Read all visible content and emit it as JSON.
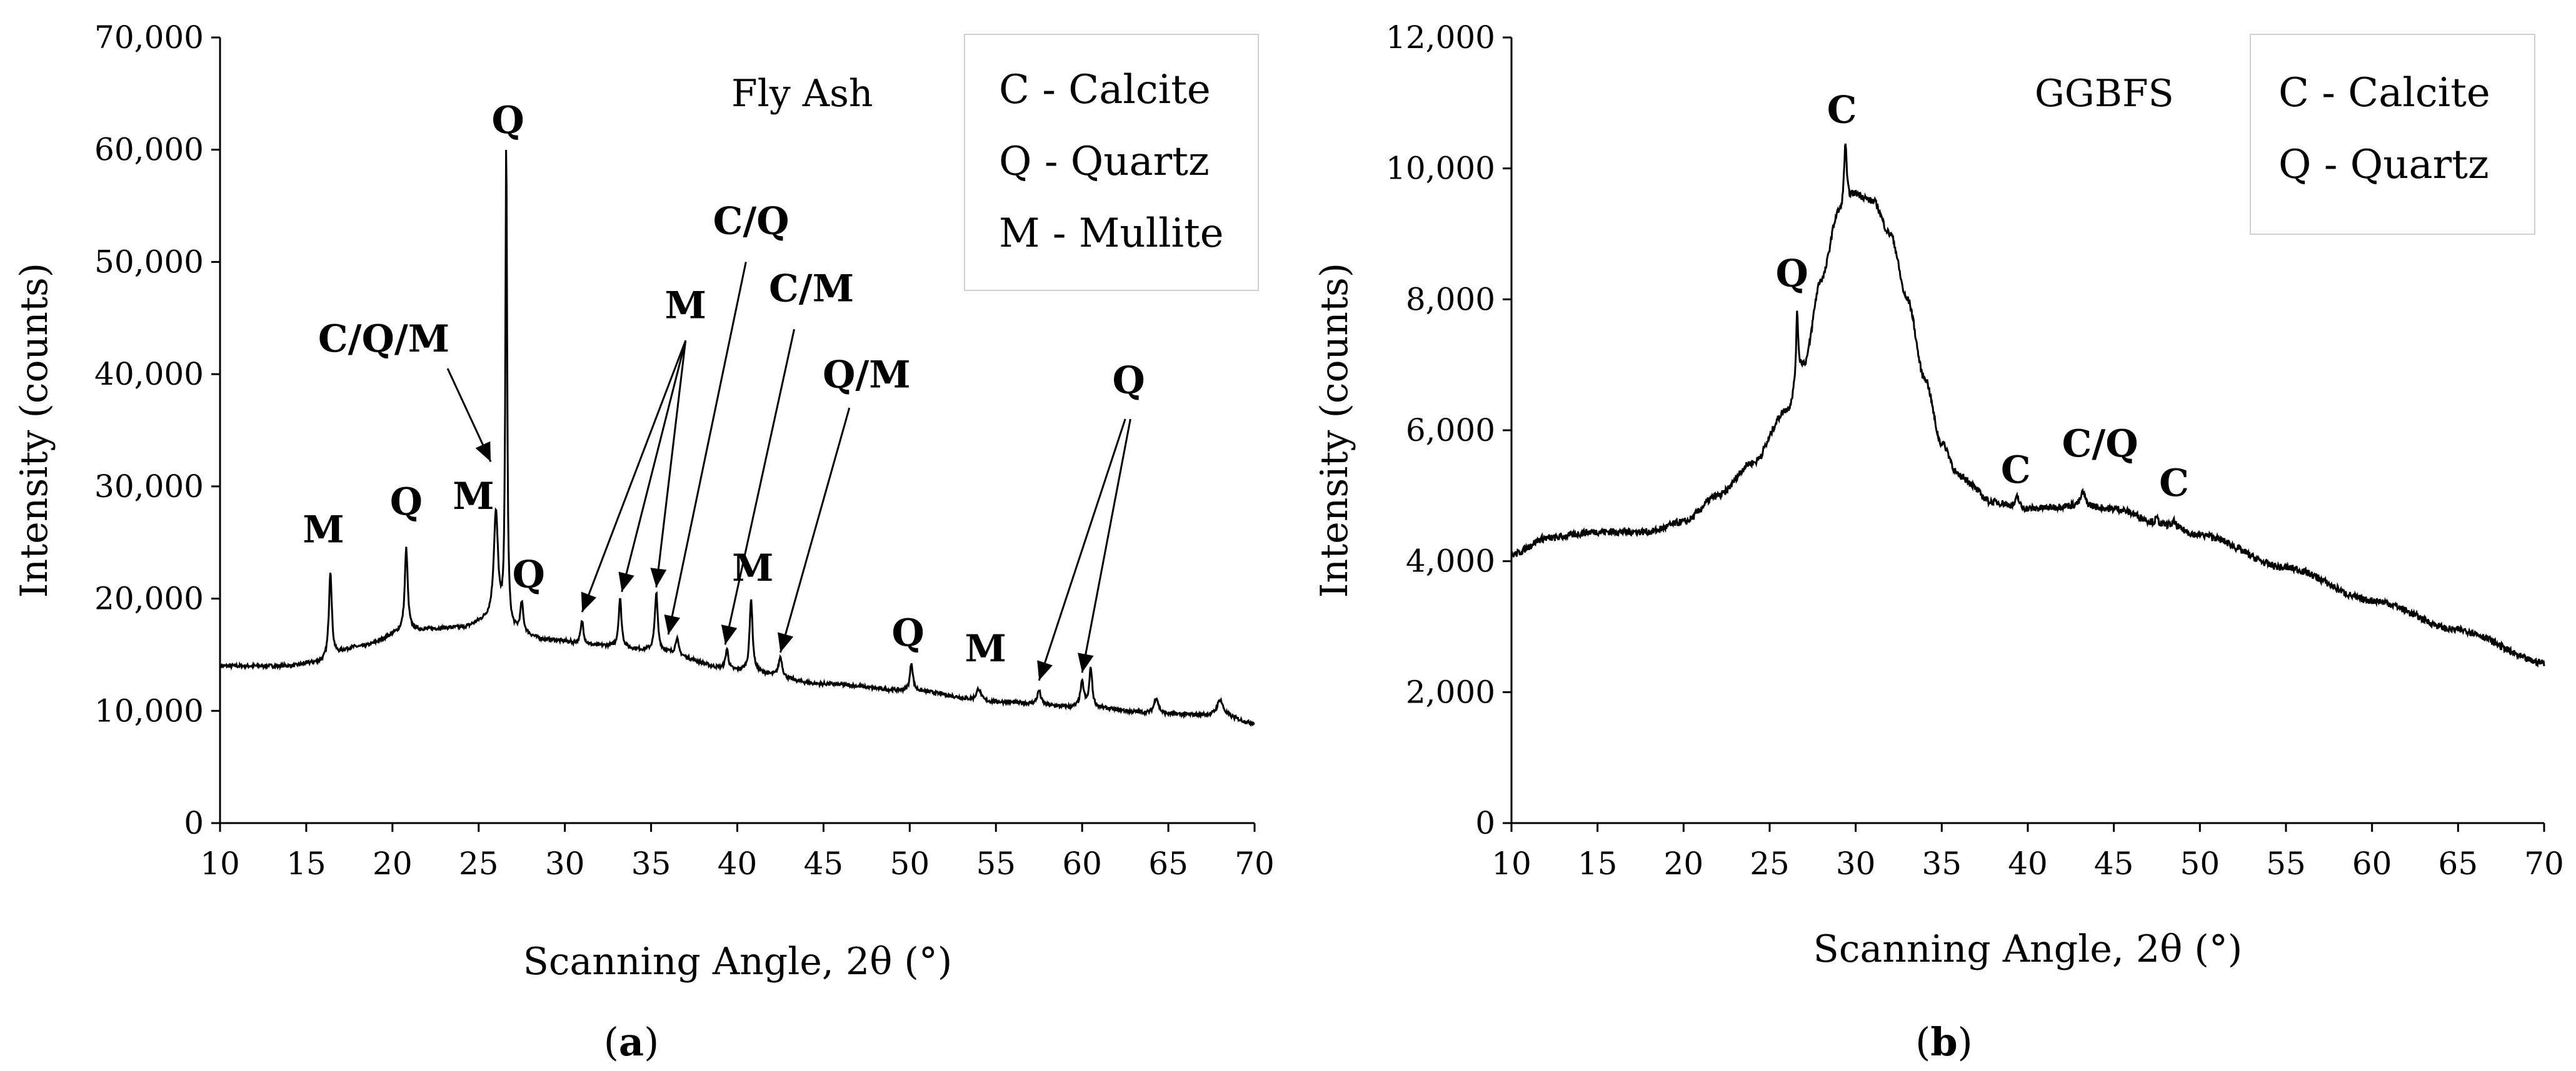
{
  "chart_data": [
    {
      "type": "line",
      "panel_label": "a",
      "sample_label": "Fly Ash",
      "xlabel": "Scanning Angle, 2θ (°)",
      "ylabel": "Intensity (counts)",
      "xlim": [
        10,
        70
      ],
      "ylim": [
        0,
        70000
      ],
      "xticks": [
        "10",
        "15",
        "20",
        "25",
        "30",
        "35",
        "40",
        "45",
        "50",
        "55",
        "60",
        "65",
        "70"
      ],
      "yticks": [
        "0",
        "10,000",
        "20,000",
        "30,000",
        "40,000",
        "50,000",
        "60,000",
        "70,000"
      ],
      "legend": [
        "C - Calcite",
        "Q - Quartz",
        "M - Mullite"
      ],
      "baseline": [
        [
          10,
          14000
        ],
        [
          14,
          14000
        ],
        [
          15.5,
          14300
        ],
        [
          18,
          15700
        ],
        [
          21,
          17200
        ],
        [
          24,
          17400
        ],
        [
          25.5,
          18000
        ],
        [
          27,
          17000
        ],
        [
          29,
          16300
        ],
        [
          32,
          15800
        ],
        [
          35,
          15400
        ],
        [
          40,
          13600
        ],
        [
          45,
          12400
        ],
        [
          50,
          11800
        ],
        [
          55,
          10800
        ],
        [
          60,
          10300
        ],
        [
          65,
          9700
        ],
        [
          68,
          9600
        ],
        [
          70,
          8900
        ]
      ],
      "peaks": [
        {
          "x": 16.4,
          "y": 22500,
          "w": 0.2
        },
        {
          "x": 20.8,
          "y": 24500,
          "w": 0.2
        },
        {
          "x": 26.0,
          "y": 27500,
          "w": 0.3
        },
        {
          "x": 26.6,
          "y": 60500,
          "w": 0.12
        },
        {
          "x": 27.5,
          "y": 19500,
          "w": 0.2
        },
        {
          "x": 31.0,
          "y": 18000,
          "w": 0.2
        },
        {
          "x": 33.2,
          "y": 20000,
          "w": 0.2
        },
        {
          "x": 35.3,
          "y": 20500,
          "w": 0.2
        },
        {
          "x": 36.5,
          "y": 16500,
          "w": 0.2
        },
        {
          "x": 39.4,
          "y": 15500,
          "w": 0.2
        },
        {
          "x": 40.8,
          "y": 20000,
          "w": 0.2
        },
        {
          "x": 42.5,
          "y": 14800,
          "w": 0.25
        },
        {
          "x": 50.1,
          "y": 14300,
          "w": 0.2
        },
        {
          "x": 54.0,
          "y": 12000,
          "w": 0.3
        },
        {
          "x": 57.5,
          "y": 11800,
          "w": 0.25
        },
        {
          "x": 60.0,
          "y": 12500,
          "w": 0.25
        },
        {
          "x": 60.5,
          "y": 13800,
          "w": 0.2
        },
        {
          "x": 64.3,
          "y": 11200,
          "w": 0.3
        },
        {
          "x": 68.0,
          "y": 11000,
          "w": 0.4
        }
      ],
      "annotations": [
        {
          "text": "M",
          "x": 16.0,
          "y": 25000
        },
        {
          "text": "Q",
          "x": 20.8,
          "y": 27500
        },
        {
          "text": "M",
          "x": 24.7,
          "y": 28000
        },
        {
          "text": "Q",
          "x": 26.7,
          "y": 61500
        },
        {
          "text": "Q",
          "x": 27.9,
          "y": 21000
        },
        {
          "text": "C/Q/M",
          "x": 19.5,
          "y": 42000
        },
        {
          "text": "M",
          "x": 37.0,
          "y": 45000
        },
        {
          "text": "C/Q",
          "x": 40.8,
          "y": 52500
        },
        {
          "text": "C/M",
          "x": 44.3,
          "y": 46500
        },
        {
          "text": "Q/M",
          "x": 47.5,
          "y": 38800
        },
        {
          "text": "M",
          "x": 40.9,
          "y": 21600
        },
        {
          "text": "Q",
          "x": 49.9,
          "y": 15800
        },
        {
          "text": "M",
          "x": 54.4,
          "y": 14400
        },
        {
          "text": "Q",
          "x": 62.7,
          "y": 38300
        }
      ]
    },
    {
      "type": "line",
      "panel_label": "b",
      "sample_label": "GGBFS",
      "xlabel": "Scanning Angle, 2θ (°)",
      "ylabel": "Intensity (counts)",
      "xlim": [
        10,
        70
      ],
      "ylim": [
        0,
        12000
      ],
      "xticks": [
        "10",
        "15",
        "20",
        "25",
        "30",
        "35",
        "40",
        "45",
        "50",
        "55",
        "60",
        "65",
        "70"
      ],
      "yticks": [
        "0",
        "2,000",
        "4,000",
        "6,000",
        "8,000",
        "10,000",
        "12,000"
      ],
      "legend": [
        "C - Calcite",
        "Q - Quartz"
      ],
      "baseline": [
        [
          10,
          4100
        ],
        [
          12,
          4350
        ],
        [
          15,
          4450
        ],
        [
          18,
          4450
        ],
        [
          20,
          4600
        ],
        [
          22,
          5000
        ],
        [
          24,
          5500
        ],
        [
          26,
          6300
        ],
        [
          27,
          7000
        ],
        [
          28,
          8300
        ],
        [
          29,
          9300
        ],
        [
          30,
          9600
        ],
        [
          31,
          9500
        ],
        [
          32,
          9000
        ],
        [
          33,
          8000
        ],
        [
          34,
          6800
        ],
        [
          35,
          5800
        ],
        [
          36,
          5300
        ],
        [
          38,
          4900
        ],
        [
          40,
          4800
        ],
        [
          43,
          4850
        ],
        [
          45,
          4800
        ],
        [
          48,
          4550
        ],
        [
          50,
          4400
        ],
        [
          55,
          3900
        ],
        [
          60,
          3400
        ],
        [
          65,
          2950
        ],
        [
          70,
          2450
        ]
      ],
      "peaks": [
        {
          "x": 26.6,
          "y": 7800,
          "w": 0.15
        },
        {
          "x": 29.4,
          "y": 10400,
          "w": 0.18
        },
        {
          "x": 39.4,
          "y": 5000,
          "w": 0.2
        },
        {
          "x": 43.2,
          "y": 5050,
          "w": 0.3
        },
        {
          "x": 47.5,
          "y": 4650,
          "w": 0.25
        },
        {
          "x": 48.5,
          "y": 4600,
          "w": 0.25
        }
      ],
      "annotations": [
        {
          "text": "C",
          "x": 29.2,
          "y": 10700
        },
        {
          "text": "Q",
          "x": 26.3,
          "y": 8200
        },
        {
          "text": "C",
          "x": 39.3,
          "y": 5200
        },
        {
          "text": "C/Q",
          "x": 44.2,
          "y": 5600
        },
        {
          "text": "C",
          "x": 48.5,
          "y": 5000
        }
      ]
    }
  ],
  "captions": {
    "a": "(a)",
    "b": "(b)"
  }
}
